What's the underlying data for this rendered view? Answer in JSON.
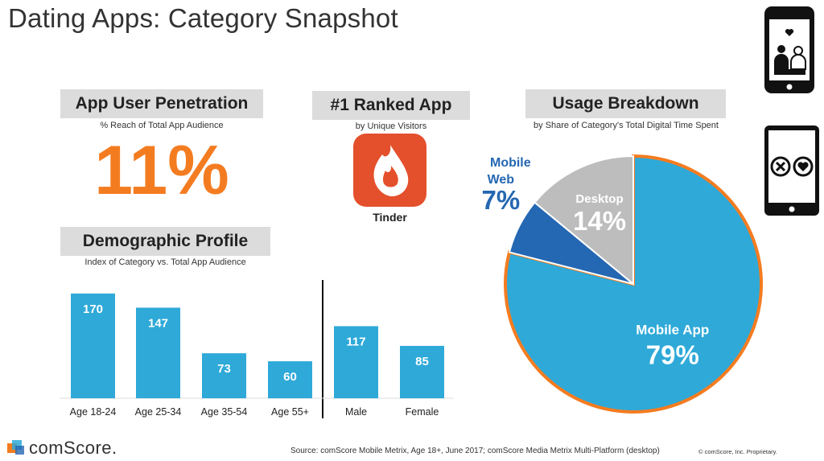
{
  "title": "Dating Apps: Category Snapshot",
  "penetration": {
    "heading": "App User Penetration",
    "subtitle": "% Reach of Total App Audience",
    "value": "11%"
  },
  "ranked": {
    "heading": "#1 Ranked App",
    "subtitle": "by Unique Visitors",
    "app_name": "Tinder",
    "icon": "tinder-flame-icon",
    "icon_color": "#e4502c"
  },
  "usage": {
    "heading": "Usage Breakdown",
    "subtitle": "by Share of Category's Total Digital Time Spent"
  },
  "demographic": {
    "heading": "Demographic Profile",
    "subtitle": "Index of Category vs. Total App Audience"
  },
  "chart_data": [
    {
      "type": "bar",
      "categories": [
        "Age 18-24",
        "Age 25-34",
        "Age 35-54",
        "Age 55+",
        "Male",
        "Female"
      ],
      "values": [
        170,
        147,
        73,
        60,
        117,
        85
      ],
      "value_labels": [
        "170",
        "147",
        "73",
        "60",
        "117",
        "85"
      ],
      "ylim": [
        0,
        175
      ],
      "color": "#2ea9d8",
      "divider_after": "Age 55+"
    },
    {
      "type": "pie",
      "slices": [
        {
          "label": "Mobile App",
          "value": 79,
          "value_label": "79%",
          "color": "#2ea9d8"
        },
        {
          "label": "Mobile Web",
          "value": 7,
          "value_label": "7%",
          "color": "#2467b2"
        },
        {
          "label": "Desktop",
          "value": 14,
          "value_label": "14%",
          "color": "#bdbdbd"
        }
      ],
      "highlight_outline": "#f47c20"
    }
  ],
  "icons": {
    "phone_top": "phone-couple-icon",
    "phone_side": "phone-swipe-icon"
  },
  "footer": {
    "logo": "comScore.",
    "source": "Source: comScore Mobile Metrix, Age 18+, June 2017; comScore Media Metrix Multi-Platform (desktop)",
    "copyright": "© comScore, Inc. Proprietary."
  }
}
